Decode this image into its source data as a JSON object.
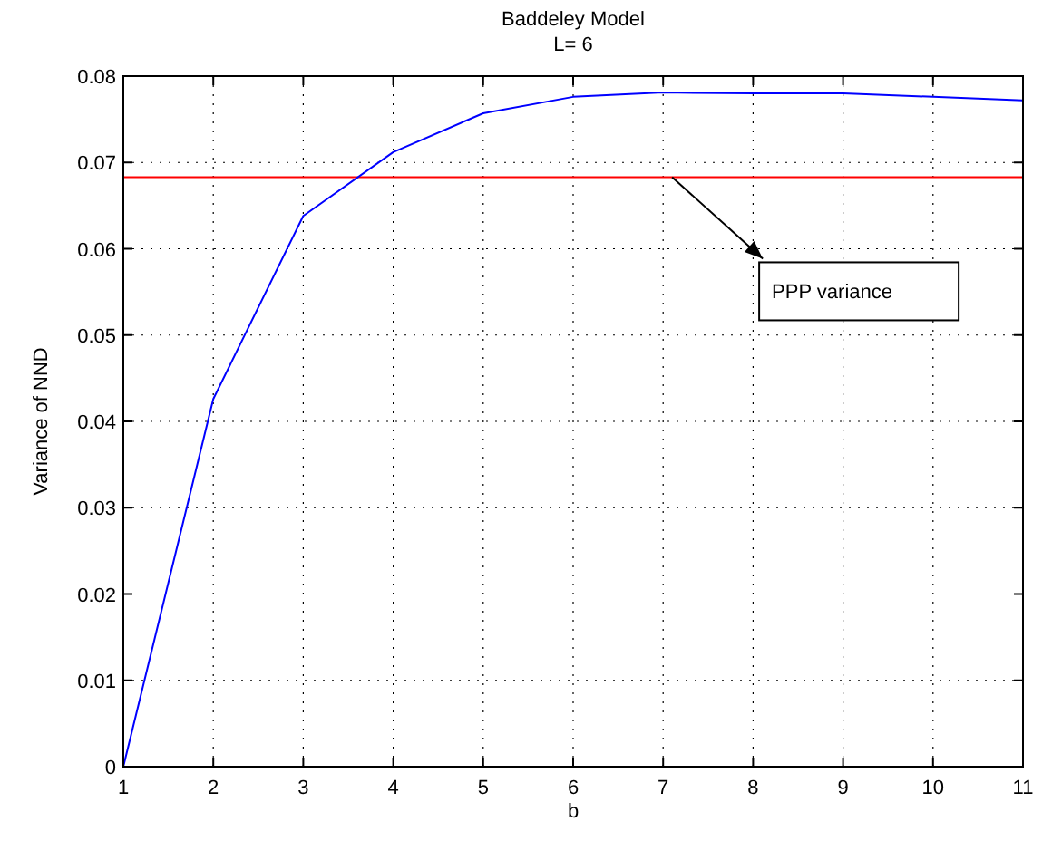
{
  "chart_data": {
    "type": "line",
    "title": "Baddeley Model",
    "subtitle": "L= 6",
    "xlabel": "b",
    "ylabel": "Variance of NND",
    "x": [
      1,
      2,
      3,
      4,
      5,
      6,
      7,
      8,
      9,
      10,
      11
    ],
    "series": [
      {
        "color": "#0000ff",
        "values": [
          0,
          0.0426,
          0.0638,
          0.0712,
          0.0757,
          0.0776,
          0.0781,
          0.078,
          0.078,
          0.0776,
          0.0772
        ]
      }
    ],
    "xlim": [
      1,
      11
    ],
    "xticks": [
      1,
      2,
      3,
      4,
      5,
      6,
      7,
      8,
      9,
      10,
      11
    ],
    "ylim": [
      0,
      0.08
    ],
    "yticks": [
      0,
      0.01,
      0.02,
      0.03,
      0.04,
      0.05,
      0.06,
      0.07,
      0.08
    ],
    "grid": true,
    "marker": "none",
    "line_style": "solid",
    "ref_lines": [
      {
        "axis": "y",
        "value": 0.0683,
        "color": "#ff0000"
      }
    ],
    "annotations": [
      {
        "text": "PPP variance",
        "x": 7.1,
        "y": 0.0683
      }
    ]
  }
}
